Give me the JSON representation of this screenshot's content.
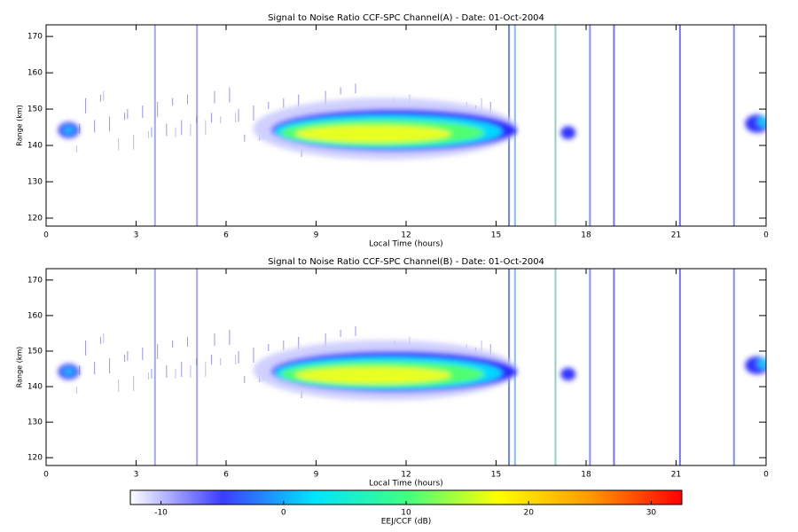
{
  "chart_data": [
    {
      "type": "heatmap",
      "title": "Signal to Noise Ratio CCF-SPC Channel(A) - Date: 01-Oct-2004",
      "xlabel": "Local Time (hours)",
      "ylabel": "Range (km)",
      "xlim": [
        0,
        24
      ],
      "xticks": [
        0,
        3,
        6,
        9,
        12,
        15,
        18,
        21,
        {
          "value": 24,
          "label": "0"
        }
      ],
      "ylim": [
        117.8,
        173.2
      ],
      "yticks": [
        120,
        130,
        140,
        150,
        160,
        170
      ]
    },
    {
      "type": "heatmap",
      "title": "Signal to Noise Ratio CCF-SPC Channel(B) - Date: 01-Oct-2004",
      "xlabel": "Local Time (hours)",
      "ylabel": "Range (km)",
      "xlim": [
        0,
        24
      ],
      "xticks": [
        0,
        3,
        6,
        9,
        12,
        15,
        18,
        21,
        {
          "value": 24,
          "label": "0"
        }
      ],
      "ylim": [
        117.8,
        173.2
      ],
      "yticks": [
        120,
        130,
        140,
        150,
        160,
        170
      ]
    }
  ],
  "colorbar": {
    "label": "EEJ/CCF (dB)",
    "lim": [
      -12.5,
      32.5
    ],
    "ticks": [
      -10,
      0,
      10,
      20,
      30
    ],
    "colors": [
      "#ffffff",
      "#3c3cff",
      "#00e5ff",
      "#40ff80",
      "#ffff00",
      "#ff9900",
      "#ff0000"
    ]
  }
}
